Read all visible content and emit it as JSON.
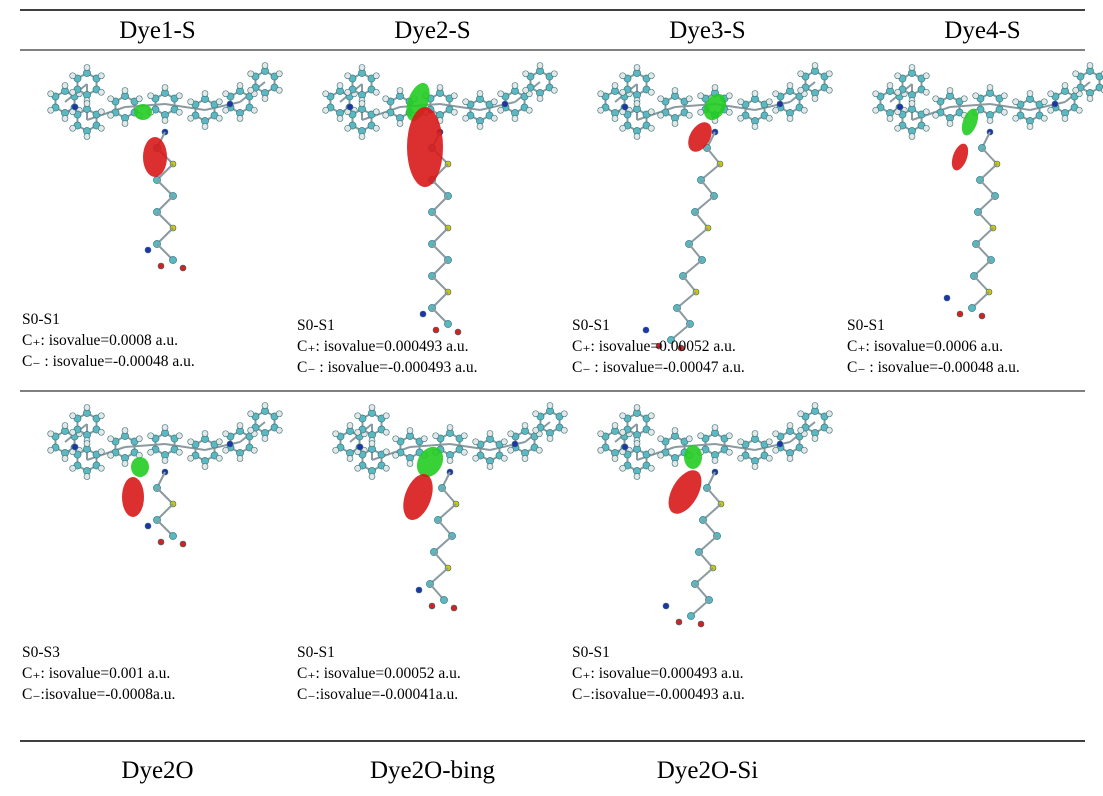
{
  "table": {
    "header": [
      "Dye1-S",
      "Dye2-S",
      "Dye3-S",
      "Dye4-S"
    ],
    "rows": [
      [
        {
          "state": "S0-S1",
          "positive": "C₊: isovalue=0.0008 a.u.",
          "negative": "C₋ : isovalue=-0.00048 a.u."
        },
        {
          "state": "S0-S1",
          "positive": "C₊: isovalue=0.000493 a.u.",
          "negative": "C₋ : isovalue=-0.000493 a.u."
        },
        {
          "state": "S0-S1",
          "positive": "C₊: isovalue=0.00052 a.u.",
          "negative": "C₋ : isovalue=-0.00047 a.u."
        },
        {
          "state": "S0-S1",
          "positive": "C₊: isovalue=0.0006 a.u.",
          "negative": "C₋ : isovalue=-0.00048 a.u."
        }
      ],
      [
        {
          "state": "S0-S3",
          "positive": "C₊: isovalue=0.001 a.u.",
          "negative": "C₋:isovalue=-0.0008a.u."
        },
        {
          "state": "S0-S1",
          "positive": "C₊: isovalue=0.00052 a.u.",
          "negative": "C₋:isovalue=-0.00041a.u."
        },
        {
          "state": "S0-S1",
          "positive": "C₊: isovalue=0.000493 a.u.",
          "negative": "C₋:isovalue=-0.000493 a.u."
        }
      ]
    ],
    "footer": [
      "Dye2O",
      "Dye2O-bing",
      "Dye2O-Si"
    ]
  }
}
